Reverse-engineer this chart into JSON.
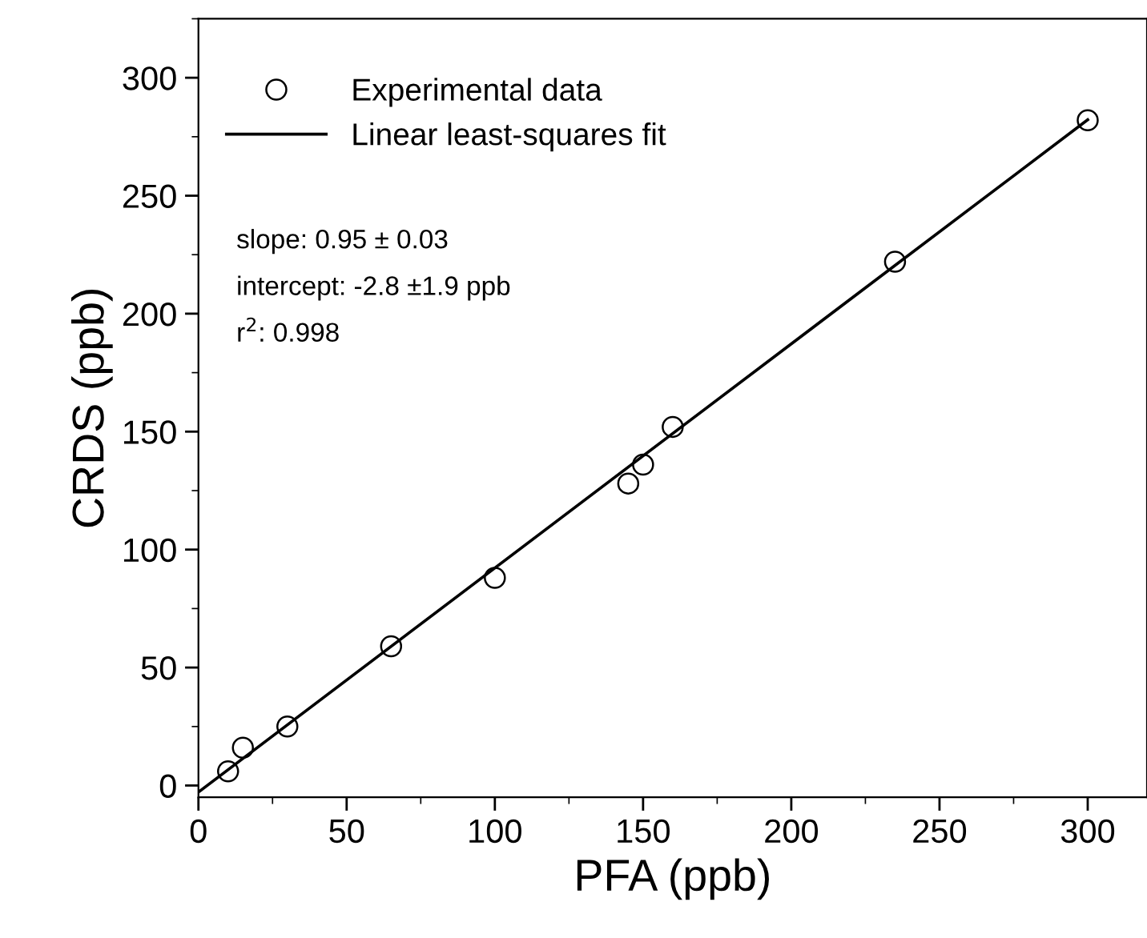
{
  "chart_data": {
    "type": "scatter",
    "xlabel": "PFA (ppb)",
    "ylabel": "CRDS (ppb)",
    "xlim": [
      0,
      320
    ],
    "ylim": [
      -5,
      325
    ],
    "xticks": [
      0,
      50,
      100,
      150,
      200,
      250,
      300
    ],
    "yticks": [
      0,
      50,
      100,
      150,
      200,
      250,
      300
    ],
    "grid": false,
    "legend": "top left",
    "marker": "circle",
    "series": [
      {
        "name": "Experimental data",
        "color": "#000000",
        "x": [
          10,
          15,
          30,
          65,
          100,
          145,
          150,
          160,
          235,
          300
        ],
        "values": [
          6,
          16,
          25,
          59,
          88,
          128,
          136,
          152,
          222,
          282
        ]
      },
      {
        "name": "Linear least-squares fit",
        "type": "line",
        "color": "#000000",
        "marker": "none",
        "line_style": "solid",
        "x": [
          0,
          300
        ],
        "values": [
          -2.8,
          282.2
        ]
      }
    ],
    "annotations": [
      "slope: 0.95 ± 0.03",
      "intercept: -2.8 ±1.9 ppb",
      "r$^{2}$: 0.998"
    ]
  }
}
